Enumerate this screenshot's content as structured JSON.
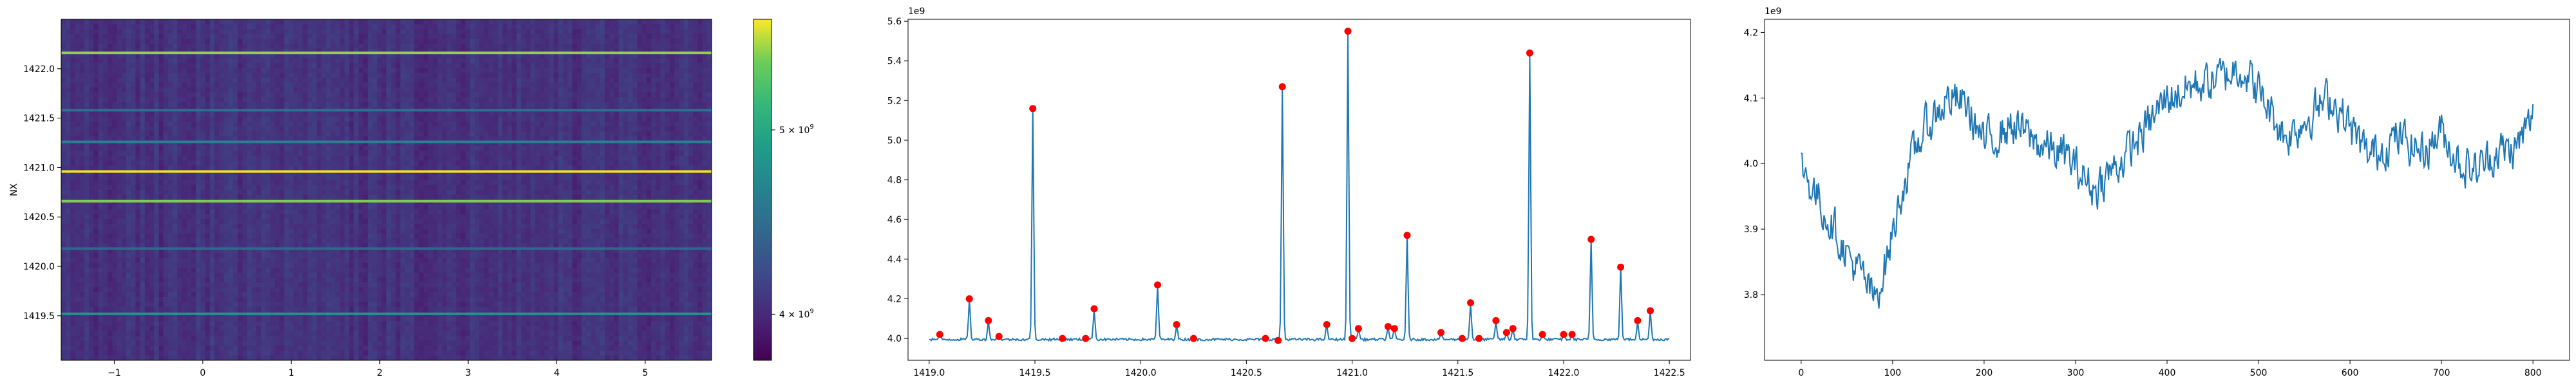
{
  "chart_data": [
    {
      "type": "heatmap",
      "title": "",
      "ylabel": "NX",
      "xlim": [
        -1.6,
        5.75
      ],
      "ylim": [
        1419.05,
        1422.5
      ],
      "xticks": [
        "−1",
        "0",
        "1",
        "2",
        "3",
        "4",
        "5"
      ],
      "yticks": [
        "1419.5",
        "1420.0",
        "1420.5",
        "1421.0",
        "1421.5",
        "1422.0"
      ],
      "colorbar": {
        "ticks": [
          {
            "value": 5000000000,
            "base": "5 × 10",
            "exp": "9"
          },
          {
            "value": 4000000000,
            "base": "4 × 10",
            "exp": "9"
          }
        ],
        "range": [
          3750000000,
          5600000000
        ],
        "colormap": "viridis"
      },
      "bright_rows": [
        {
          "y": 1422.16,
          "level": 0.88
        },
        {
          "y": 1421.58,
          "level": 0.18
        },
        {
          "y": 1421.26,
          "level": 0.32
        },
        {
          "y": 1420.96,
          "level": 1.0
        },
        {
          "y": 1420.66,
          "level": 0.85
        },
        {
          "y": 1419.52,
          "level": 0.45
        },
        {
          "y": 1420.18,
          "level": 0.12
        }
      ]
    },
    {
      "type": "line",
      "title": "",
      "xlabel": "",
      "ylabel": "",
      "offset_text": "1e9",
      "xlim": [
        1418.9,
        1422.6
      ],
      "ylim": [
        3.89,
        5.61
      ],
      "xticks": [
        "1419.0",
        "1419.5",
        "1420.0",
        "1420.5",
        "1421.0",
        "1421.5",
        "1422.0",
        "1422.5"
      ],
      "yticks": [
        "4.0",
        "4.2",
        "4.4",
        "4.6",
        "4.8",
        "5.0",
        "5.2",
        "5.4",
        "5.6"
      ],
      "line_color": "#1f77b4",
      "marker_color": "#ff0000",
      "peaks": [
        {
          "x": 1419.05,
          "y": 4.02
        },
        {
          "x": 1419.19,
          "y": 4.2
        },
        {
          "x": 1419.28,
          "y": 4.09
        },
        {
          "x": 1419.33,
          "y": 4.01
        },
        {
          "x": 1419.49,
          "y": 5.16
        },
        {
          "x": 1419.63,
          "y": 4.0
        },
        {
          "x": 1419.74,
          "y": 4.0
        },
        {
          "x": 1419.78,
          "y": 4.15
        },
        {
          "x": 1420.08,
          "y": 4.27
        },
        {
          "x": 1420.17,
          "y": 4.07
        },
        {
          "x": 1420.25,
          "y": 4.0
        },
        {
          "x": 1420.59,
          "y": 4.0
        },
        {
          "x": 1420.65,
          "y": 3.99
        },
        {
          "x": 1420.67,
          "y": 5.27
        },
        {
          "x": 1420.88,
          "y": 4.07
        },
        {
          "x": 1420.98,
          "y": 5.55
        },
        {
          "x": 1421.0,
          "y": 4.0
        },
        {
          "x": 1421.03,
          "y": 4.05
        },
        {
          "x": 1421.17,
          "y": 4.06
        },
        {
          "x": 1421.2,
          "y": 4.05
        },
        {
          "x": 1421.26,
          "y": 4.52
        },
        {
          "x": 1421.42,
          "y": 4.03
        },
        {
          "x": 1421.52,
          "y": 4.0
        },
        {
          "x": 1421.56,
          "y": 4.18
        },
        {
          "x": 1421.6,
          "y": 4.0
        },
        {
          "x": 1421.68,
          "y": 4.09
        },
        {
          "x": 1421.73,
          "y": 4.03
        },
        {
          "x": 1421.76,
          "y": 4.05
        },
        {
          "x": 1421.84,
          "y": 5.44
        },
        {
          "x": 1421.9,
          "y": 4.02
        },
        {
          "x": 1422.0,
          "y": 4.02
        },
        {
          "x": 1422.04,
          "y": 4.02
        },
        {
          "x": 1422.13,
          "y": 4.5
        },
        {
          "x": 1422.27,
          "y": 4.36
        },
        {
          "x": 1422.35,
          "y": 4.09
        },
        {
          "x": 1422.41,
          "y": 4.14
        }
      ],
      "baseline": 3.995
    },
    {
      "type": "line",
      "title": "",
      "xlabel": "",
      "ylabel": "",
      "offset_text": "1e9",
      "xlim": [
        -40,
        840
      ],
      "ylim": [
        3.7,
        4.22
      ],
      "xticks": [
        0,
        100,
        200,
        300,
        400,
        500,
        600,
        700,
        800
      ],
      "yticks": [
        "3.8",
        "3.9",
        "4.0",
        "4.1",
        "4.2"
      ],
      "line_color": "#1f77b4",
      "n_points": 800,
      "anchors": [
        [
          0,
          4.0
        ],
        [
          10,
          3.97
        ],
        [
          25,
          3.93
        ],
        [
          40,
          3.89
        ],
        [
          55,
          3.85
        ],
        [
          70,
          3.82
        ],
        [
          80,
          3.79
        ],
        [
          95,
          3.86
        ],
        [
          110,
          3.96
        ],
        [
          130,
          4.04
        ],
        [
          160,
          4.1
        ],
        [
          180,
          4.09
        ],
        [
          200,
          4.03
        ],
        [
          230,
          4.06
        ],
        [
          260,
          4.03
        ],
        [
          290,
          4.01
        ],
        [
          320,
          3.96
        ],
        [
          360,
          4.02
        ],
        [
          400,
          4.1
        ],
        [
          430,
          4.12
        ],
        [
          460,
          4.13
        ],
        [
          480,
          4.15
        ],
        [
          500,
          4.11
        ],
        [
          530,
          4.04
        ],
        [
          560,
          4.08
        ],
        [
          580,
          4.1
        ],
        [
          620,
          4.01
        ],
        [
          650,
          4.04
        ],
        [
          680,
          4.02
        ],
        [
          700,
          4.05
        ],
        [
          720,
          4.0
        ],
        [
          740,
          3.99
        ],
        [
          760,
          4.02
        ],
        [
          780,
          4.02
        ],
        [
          800,
          4.07
        ]
      ]
    }
  ]
}
